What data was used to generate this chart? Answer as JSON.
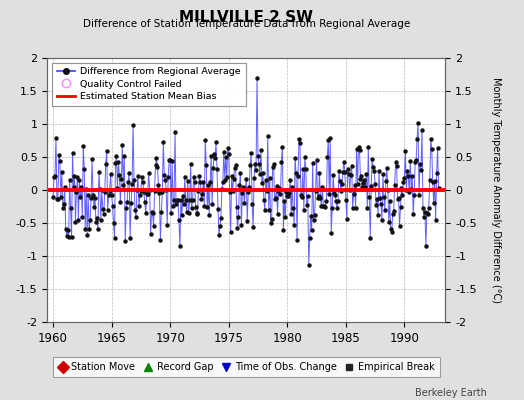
{
  "title": "MILLVILLE 2 SW",
  "subtitle": "Difference of Station Temperature Data from Regional Average",
  "ylabel": "Monthly Temperature Anomaly Difference (°C)",
  "xlabel_start": 1959.5,
  "xlabel_end": 1993.5,
  "ylim": [
    -2,
    2
  ],
  "yticks": [
    -2,
    -1.5,
    -1,
    -0.5,
    0,
    0.5,
    1,
    1.5,
    2
  ],
  "xticks": [
    1960,
    1965,
    1970,
    1975,
    1980,
    1985,
    1990
  ],
  "mean_bias": 0.0,
  "background_color": "#e0e0e0",
  "plot_bg_color": "#ffffff",
  "grid_color": "#bbbbbb",
  "line_color": "#4444ff",
  "bias_color": "#ff0000",
  "marker_color": "#111111",
  "seed": 42,
  "n_months": 396,
  "year_start": 1960,
  "watermark": "Berkeley Earth",
  "legend_top": [
    "Difference from Regional Average",
    "Quality Control Failed",
    "Estimated Station Mean Bias"
  ],
  "legend_bot": [
    "Station Move",
    "Record Gap",
    "Time of Obs. Change",
    "Empirical Break"
  ]
}
